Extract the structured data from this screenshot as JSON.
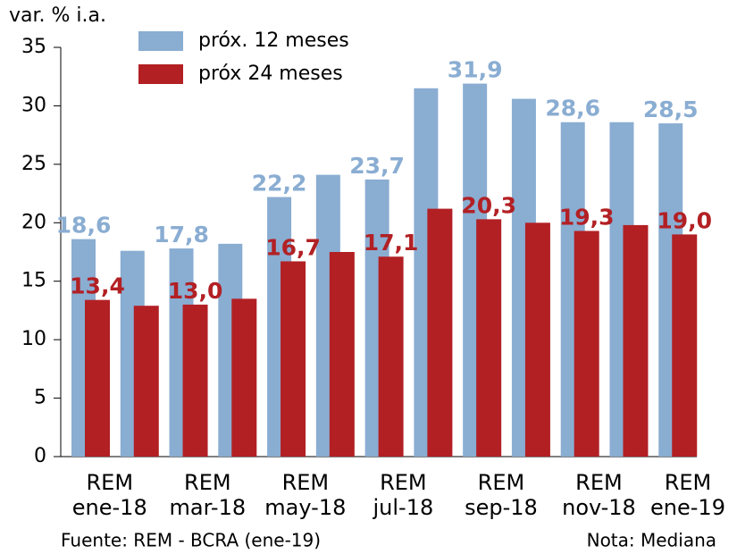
{
  "chart_data": {
    "type": "bar",
    "y_label": "var. % i.a.",
    "categories": [
      "REM ene-18",
      null,
      "REM mar-18",
      null,
      "REM may-18",
      null,
      "REM jul-18",
      null,
      "REM sep-18",
      null,
      "REM nov-18",
      null,
      "REM ene-19"
    ],
    "series": [
      {
        "name": "próx. 12 meses",
        "color": "#8aadd2",
        "values": [
          18.6,
          17.6,
          17.8,
          18.2,
          22.2,
          24.1,
          23.7,
          31.5,
          31.9,
          30.6,
          28.6,
          28.6,
          28.5
        ],
        "value_labels": [
          "18,6",
          null,
          "17,8",
          null,
          "22,2",
          null,
          "23,7",
          null,
          "31,9",
          null,
          "28,6",
          null,
          "28,5"
        ]
      },
      {
        "name": "próx 24 meses",
        "color": "#b22024",
        "values": [
          13.4,
          12.9,
          13.0,
          13.5,
          16.7,
          17.5,
          17.1,
          21.2,
          20.3,
          20.0,
          19.3,
          19.8,
          19.0
        ],
        "value_labels": [
          "13,4",
          null,
          "13,0",
          null,
          "16,7",
          null,
          "17,1",
          null,
          "20,3",
          null,
          "19,3",
          null,
          "19,0"
        ]
      }
    ],
    "ylim": [
      0,
      35
    ],
    "yticks": [
      0,
      5,
      10,
      15,
      20,
      25,
      30,
      35
    ],
    "source": "Fuente: REM - BCRA (ene-19)",
    "note": "Nota: Mediana"
  }
}
